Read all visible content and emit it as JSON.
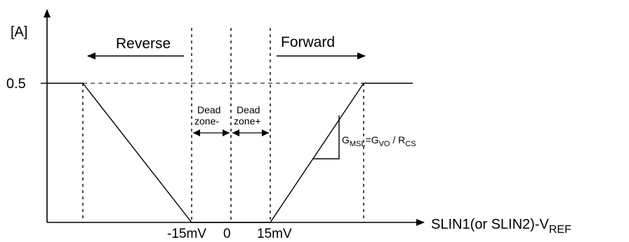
{
  "diagram": {
    "y_unit_label": "[A]",
    "y_tick_label": "0.5",
    "reverse_label": "Reverse",
    "forward_label": "Forward",
    "deadzone_minus": {
      "line1": "Dead",
      "line2": "zone-"
    },
    "deadzone_plus": {
      "line1": "Dead",
      "line2": "zone+"
    },
    "x_tick_neg": "-15mV",
    "x_tick_zero": "0",
    "x_tick_pos": "15mV",
    "x_axis_label": {
      "main": "SLIN1(or SLIN2)-V",
      "sub": "REF"
    },
    "gain_label": {
      "g": "G",
      "g_sub": "MSL",
      "eq": "=G",
      "gvo_sub": "VO",
      "slash": " / R",
      "rcs_sub": "CS"
    }
  }
}
